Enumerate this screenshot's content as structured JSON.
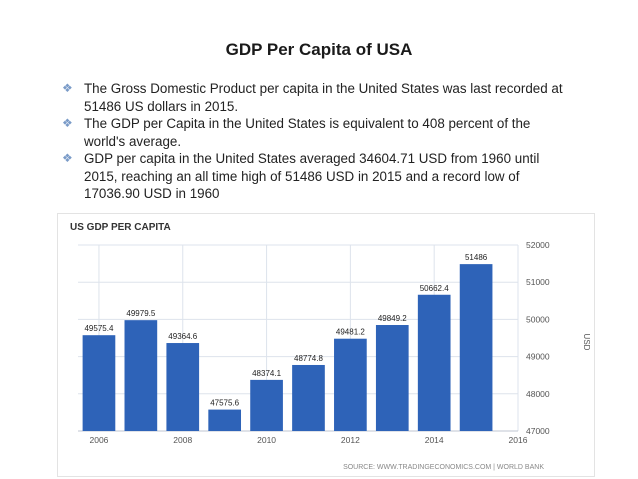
{
  "slide": {
    "title": "GDP Per Capita of USA",
    "bullets": [
      "The Gross Domestic Product per capita in the United States was last recorded at 51486 US dollars in 2015.",
      "The GDP per Capita in the United States is equivalent to 408 percent of the world's average.",
      "GDP per capita in the United States averaged 34604.71 USD from 1960 until 2015, reaching an all time high of 51486 USD in 2015 and a record low of 17036.90 USD in 1960"
    ],
    "bullet_icon": "diamond-bullet-icon"
  },
  "chart_data": {
    "type": "bar",
    "title": "US GDP PER CAPITA",
    "source": "SOURCE: WWW.TRADINGECONOMICS.COM | WORLD BANK",
    "ylabel": "USD",
    "categories": [
      "2006",
      "2007",
      "2008",
      "2009",
      "2010",
      "2011",
      "2012",
      "2013",
      "2014",
      "2015"
    ],
    "values": [
      49575.4,
      49979.5,
      49364.6,
      47575.6,
      48374.1,
      48774.8,
      49481.2,
      49849.2,
      50662.4,
      51486
    ],
    "value_labels": [
      "49575.4",
      "49979.5",
      "49364.6",
      "47575.6",
      "48374.1",
      "48774.8",
      "49481.2",
      "49849.2",
      "50662.4",
      "51486"
    ],
    "ylim": [
      47000,
      52000
    ],
    "yticks": [
      "47000",
      "48000",
      "49000",
      "50000",
      "51000",
      "52000"
    ],
    "xticks": [
      "2006",
      "2008",
      "2010",
      "2012",
      "2014",
      "2016"
    ],
    "grid": true,
    "colors": {
      "bar": "#2e63b8",
      "grid": "#dde3ec",
      "text": "#555555",
      "title": "#333333"
    }
  }
}
